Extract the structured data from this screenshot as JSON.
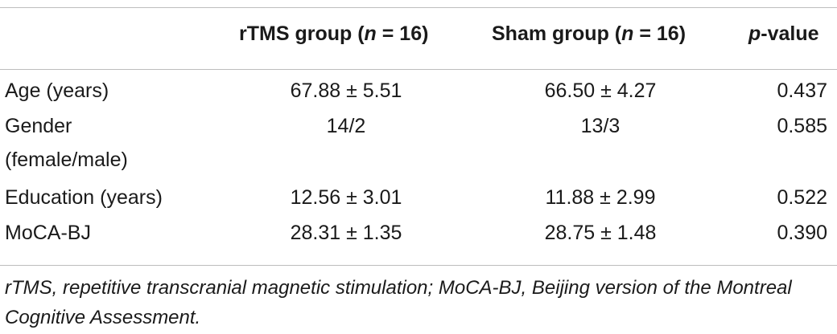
{
  "table": {
    "header": {
      "col1_prefix": "rTMS group (",
      "col1_n": "n",
      "col1_suffix": " = 16)",
      "col2_prefix": "Sham group (",
      "col2_n": "n",
      "col2_suffix": " = 16)",
      "col3_p": "p",
      "col3_suffix": "-value"
    },
    "rows": [
      {
        "label": "Age (years)",
        "rtms": "67.88 ± 5.51",
        "sham": "66.50 ± 4.27",
        "p": "0.437"
      },
      {
        "label_line1": "Gender",
        "label_line2": "(female/male)",
        "rtms": "14/2",
        "sham": "13/3",
        "p": "0.585"
      },
      {
        "label": "Education (years)",
        "rtms": "12.56 ± 3.01",
        "sham": "11.88 ± 2.99",
        "p": "0.522"
      },
      {
        "label": "MoCA-BJ",
        "rtms": "28.31 ± 1.35",
        "sham": "28.75 ± 1.48",
        "p": "0.390"
      }
    ]
  },
  "footnote": "rTMS, repetitive transcranial magnetic stimulation; MoCA-BJ, Beijing version of the Montreal Cognitive Assessment."
}
